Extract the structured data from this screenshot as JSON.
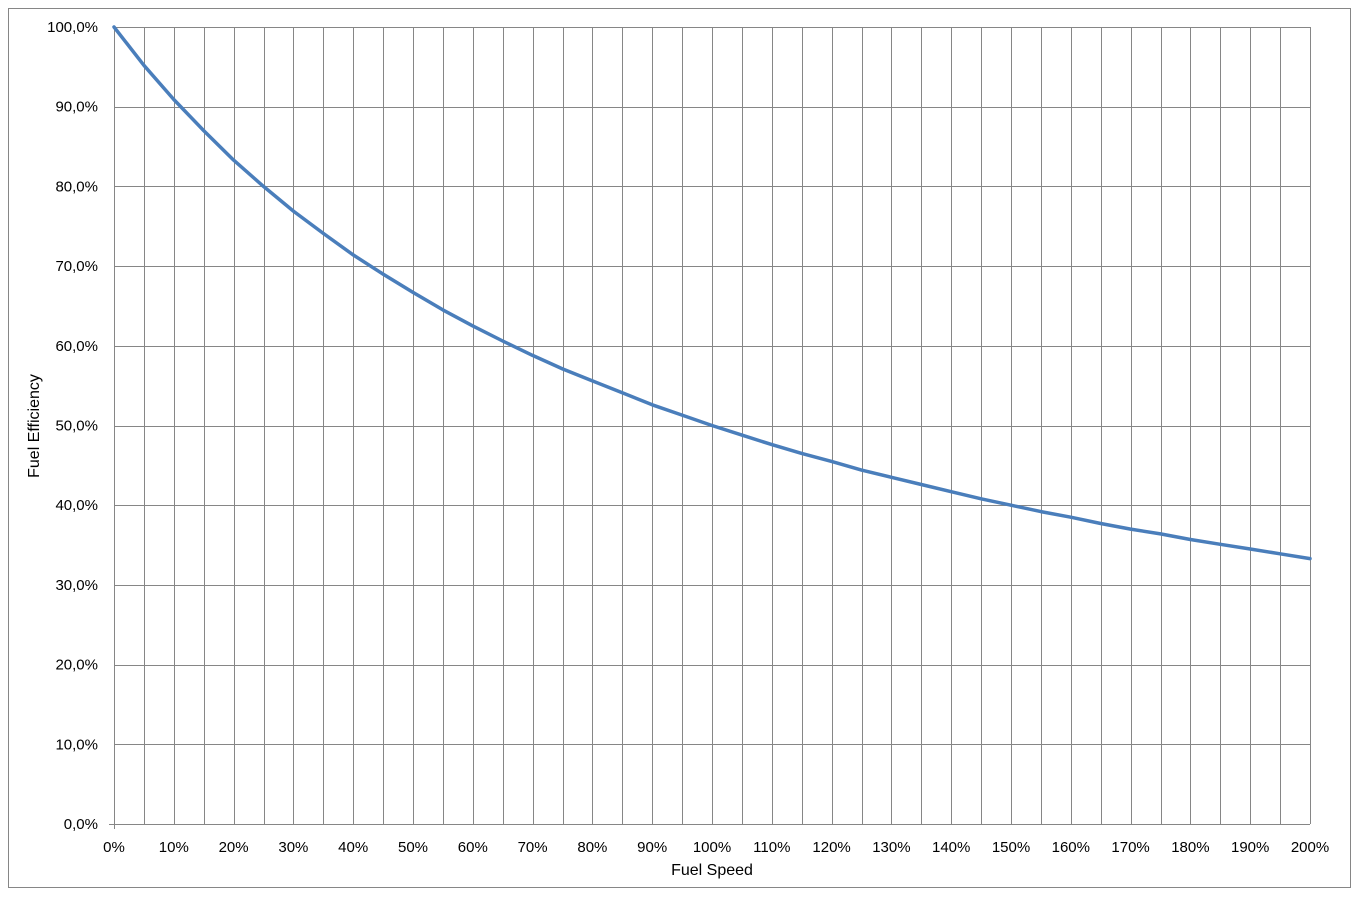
{
  "colors": {
    "series": "#4a7ebb",
    "grid": "#868686",
    "border": "#868686",
    "background": "#ffffff"
  },
  "chart_data": {
    "type": "line",
    "xlabel": "Fuel Speed",
    "ylabel": "Fuel Efficiency",
    "xlim": [
      0,
      200
    ],
    "ylim": [
      0,
      100
    ],
    "grid": true,
    "x_tick_labels": [
      "0%",
      "10%",
      "20%",
      "30%",
      "40%",
      "50%",
      "60%",
      "70%",
      "80%",
      "90%",
      "100%",
      "110%",
      "120%",
      "130%",
      "140%",
      "150%",
      "160%",
      "170%",
      "180%",
      "190%",
      "200%"
    ],
    "y_tick_labels": [
      "0,0%",
      "10,0%",
      "20,0%",
      "30,0%",
      "40,0%",
      "50,0%",
      "60,0%",
      "70,0%",
      "80,0%",
      "90,0%",
      "100,0%"
    ],
    "x": [
      0,
      5,
      10,
      15,
      20,
      25,
      30,
      35,
      40,
      45,
      50,
      55,
      60,
      65,
      70,
      75,
      80,
      85,
      90,
      95,
      100,
      105,
      110,
      115,
      120,
      125,
      130,
      135,
      140,
      145,
      150,
      155,
      160,
      165,
      170,
      175,
      180,
      185,
      190,
      195,
      200
    ],
    "series": [
      {
        "values": [
          100.0,
          95.2,
          90.9,
          87.0,
          83.3,
          80.0,
          76.9,
          74.1,
          71.4,
          69.0,
          66.7,
          64.5,
          62.5,
          60.6,
          58.8,
          57.1,
          55.6,
          54.1,
          52.6,
          51.3,
          50.0,
          48.8,
          47.6,
          46.5,
          45.5,
          44.4,
          43.5,
          42.6,
          41.7,
          40.8,
          40.0,
          39.2,
          38.5,
          37.7,
          37.0,
          36.4,
          35.7,
          35.1,
          34.5,
          33.9,
          33.3
        ]
      }
    ]
  }
}
